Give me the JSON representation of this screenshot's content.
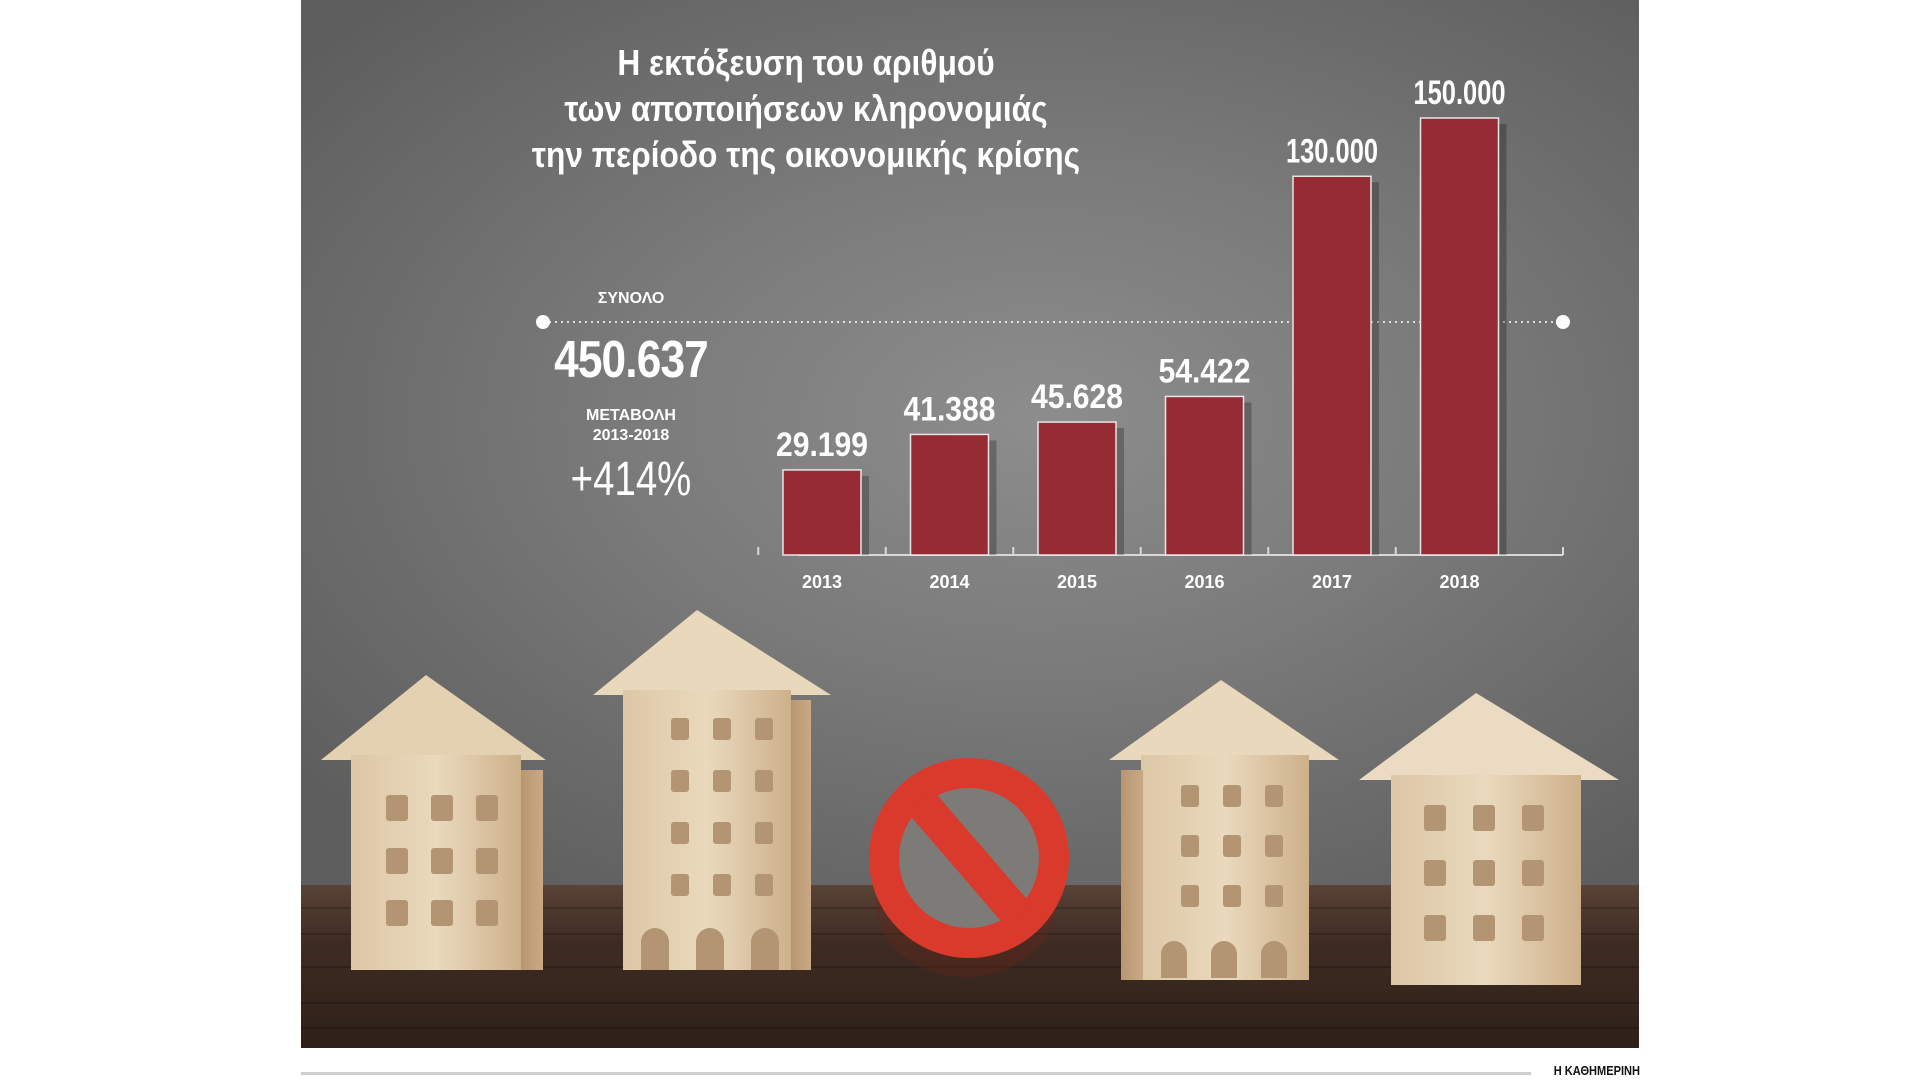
{
  "title_lines": [
    "Η εκτόξευση του αριθμού",
    "των αποποιήσεων κληρονομιάς",
    "την περίοδο της οικονομικής κρίσης"
  ],
  "summary": {
    "total_label": "ΣΥΝΟΛΟ",
    "total_value": "450.637",
    "change_label_line1": "ΜΕΤΑΒΟΛΗ",
    "change_label_line2": "2013-2018",
    "change_value": "+414%"
  },
  "source": "Η ΚΑΘΗΜΕΡΙΝΗ",
  "colors": {
    "bar": "#962b35",
    "text": "#ffffff"
  },
  "chart_data": {
    "type": "bar",
    "title": "Η εκτόξευση του αριθμού των αποποιήσεων κληρονομιάς την περίοδο της οικονομικής κρίσης",
    "categories": [
      "2013",
      "2014",
      "2015",
      "2016",
      "2017",
      "2018"
    ],
    "values": [
      29199,
      41388,
      45628,
      54422,
      130000,
      150000
    ],
    "value_labels": [
      "29.199",
      "41.388",
      "45.628",
      "54.422",
      "130.000",
      "150.000"
    ],
    "xlabel": "",
    "ylabel": "",
    "ylim": [
      0,
      150000
    ],
    "grid": false,
    "legend": "none",
    "reference_line": "dotted line at 2017 bar height"
  }
}
